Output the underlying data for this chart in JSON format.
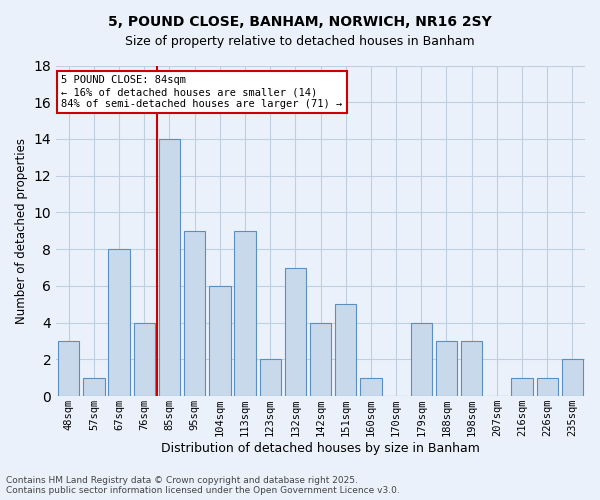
{
  "title_line1": "5, POUND CLOSE, BANHAM, NORWICH, NR16 2SY",
  "title_line2": "Size of property relative to detached houses in Banham",
  "xlabel": "Distribution of detached houses by size in Banham",
  "ylabel": "Number of detached properties",
  "bar_labels": [
    "48sqm",
    "57sqm",
    "67sqm",
    "76sqm",
    "85sqm",
    "95sqm",
    "104sqm",
    "113sqm",
    "123sqm",
    "132sqm",
    "142sqm",
    "151sqm",
    "160sqm",
    "170sqm",
    "179sqm",
    "188sqm",
    "198sqm",
    "207sqm",
    "216sqm",
    "226sqm",
    "235sqm"
  ],
  "bar_values": [
    3,
    1,
    8,
    4,
    14,
    9,
    6,
    9,
    2,
    7,
    4,
    5,
    1,
    0,
    4,
    3,
    3,
    0,
    1,
    1,
    2
  ],
  "bar_color": "#c8d9ec",
  "bar_edge_color": "#5a8fc0",
  "grid_color": "#c0cfe0",
  "background_color": "#eaf1fa",
  "vline_color": "#cc0000",
  "annotation_text": "5 POUND CLOSE: 84sqm\n← 16% of detached houses are smaller (14)\n84% of semi-detached houses are larger (71) →",
  "annotation_box_color": "#ffffff",
  "annotation_box_edge": "#cc0000",
  "ylim": [
    0,
    18
  ],
  "yticks": [
    0,
    2,
    4,
    6,
    8,
    10,
    12,
    14,
    16,
    18
  ],
  "footer_text": "Contains HM Land Registry data © Crown copyright and database right 2025.\nContains public sector information licensed under the Open Government Licence v3.0."
}
